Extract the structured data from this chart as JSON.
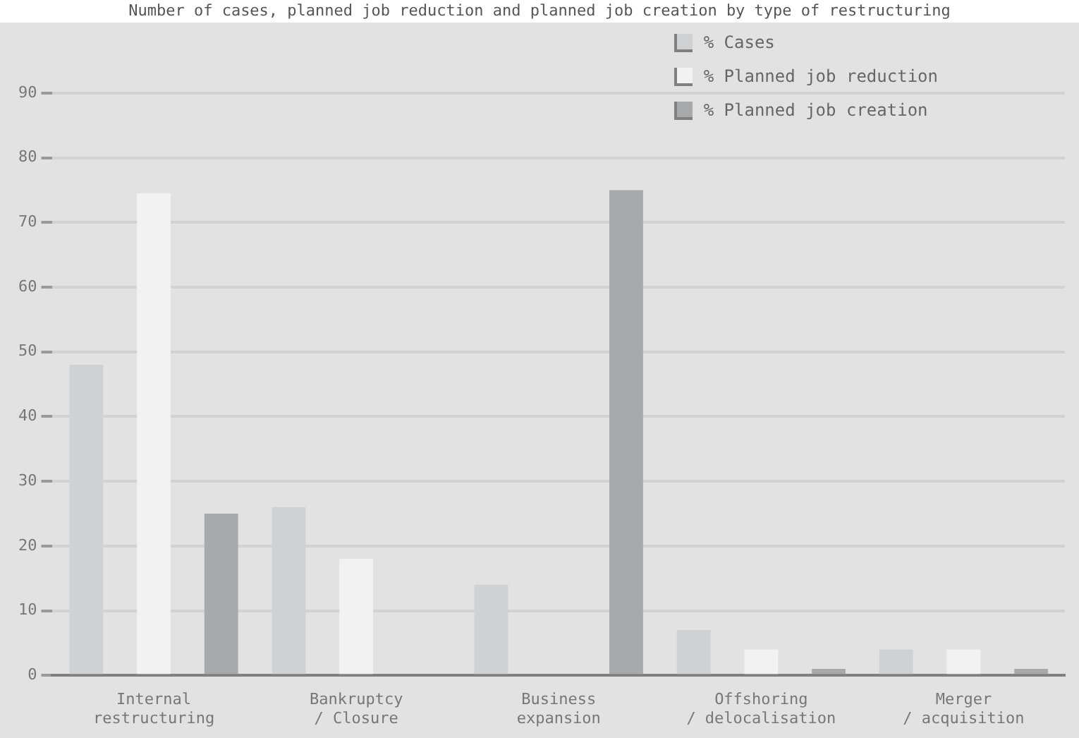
{
  "chart_data": {
    "type": "bar",
    "title": "Number of cases, planned job reduction and planned job creation by type of restructuring",
    "categories": [
      "Internal restructuring",
      "Bankruptcy / Closure",
      "Business expansion",
      "Offshoring / delocalisation",
      "Merger / acquisition"
    ],
    "series": [
      {
        "name": "% Cases",
        "color": "#d0d1d3",
        "values": [
          48,
          26,
          14,
          7,
          4
        ]
      },
      {
        "name": "% Planned job reduction",
        "color": "#f2f2f2",
        "values": [
          74.5,
          18,
          0,
          4,
          4
        ]
      },
      {
        "name": "% Planned job creation",
        "color": "#a8a9ab",
        "values": [
          25,
          0,
          75,
          1,
          1
        ]
      }
    ],
    "ylim": [
      0,
      90
    ],
    "yticks": [
      0,
      10,
      20,
      30,
      40,
      50,
      60,
      70,
      80,
      90
    ],
    "grid": "y",
    "legend": "top right"
  }
}
